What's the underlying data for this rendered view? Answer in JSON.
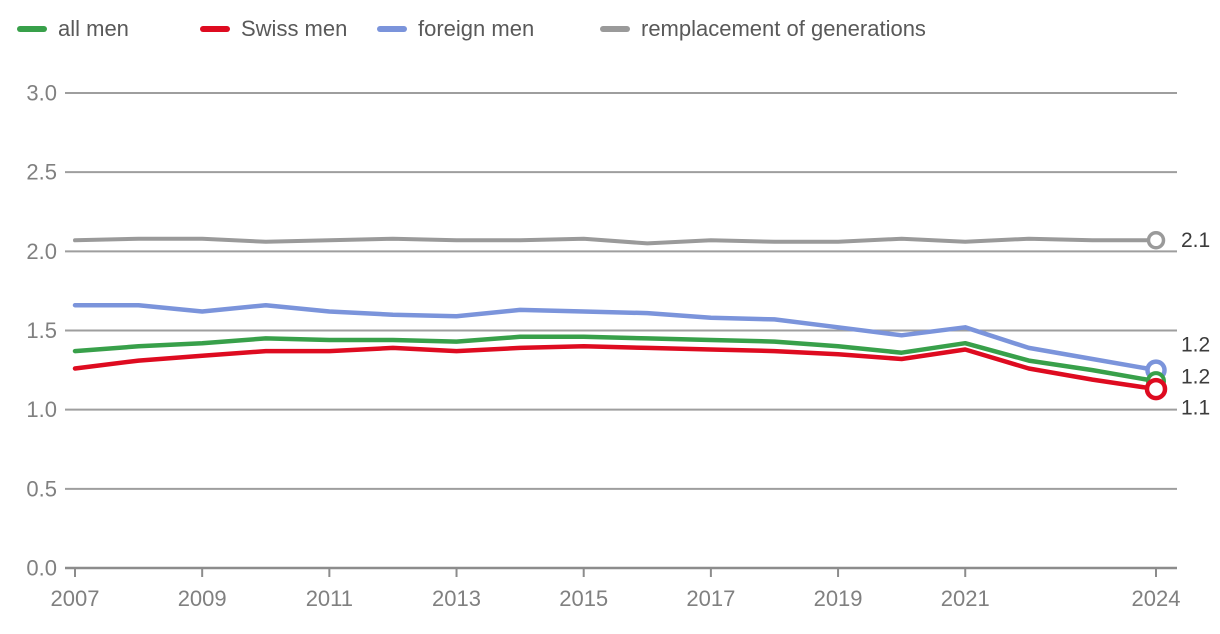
{
  "chart_data": {
    "type": "line",
    "title": "",
    "xlabel": "",
    "ylabel": "",
    "x": [
      2007,
      2008,
      2009,
      2010,
      2011,
      2012,
      2013,
      2014,
      2015,
      2016,
      2017,
      2018,
      2019,
      2020,
      2021,
      2022,
      2023,
      2024
    ],
    "x_tick_labels": [
      "2007",
      "2009",
      "2011",
      "2013",
      "2015",
      "2017",
      "2019",
      "2021",
      "2024"
    ],
    "y_ticks": [
      0.0,
      0.5,
      1.0,
      1.5,
      2.0,
      2.5,
      3.0
    ],
    "y_tick_labels": [
      "0.0",
      "0.5",
      "1.0",
      "1.5",
      "2.0",
      "2.5",
      "3.0"
    ],
    "ylim": [
      0.0,
      3.0
    ],
    "grid": "horizontal",
    "legend_position": "top-left",
    "series": [
      {
        "name": "all men",
        "color": "#38a04a",
        "end_label": "1.2",
        "values": [
          1.37,
          1.4,
          1.42,
          1.45,
          1.44,
          1.44,
          1.43,
          1.46,
          1.46,
          1.45,
          1.44,
          1.43,
          1.4,
          1.36,
          1.42,
          1.31,
          1.25,
          1.18
        ]
      },
      {
        "name": "Swiss men",
        "color": "#de0b20",
        "end_label": "1.1",
        "values": [
          1.26,
          1.31,
          1.34,
          1.37,
          1.37,
          1.39,
          1.37,
          1.39,
          1.4,
          1.39,
          1.38,
          1.37,
          1.35,
          1.32,
          1.38,
          1.26,
          1.19,
          1.13
        ]
      },
      {
        "name": "foreign men",
        "color": "#7b94db",
        "end_label": "1.2",
        "values": [
          1.66,
          1.66,
          1.62,
          1.66,
          1.62,
          1.6,
          1.59,
          1.63,
          1.62,
          1.61,
          1.58,
          1.57,
          1.52,
          1.47,
          1.52,
          1.39,
          1.32,
          1.25
        ]
      },
      {
        "name": "remplacement of generations",
        "color": "#9a9a9a",
        "end_label": "2.1",
        "values": [
          2.07,
          2.08,
          2.08,
          2.06,
          2.07,
          2.08,
          2.07,
          2.07,
          2.08,
          2.05,
          2.07,
          2.06,
          2.06,
          2.08,
          2.06,
          2.08,
          2.07,
          2.07
        ]
      }
    ]
  },
  "colors": {
    "gridline": "#9e9e9e",
    "axis": "#8c8c8c",
    "tick_label": "#808080",
    "end_label": "#3c3c3c",
    "legend_text": "#595959",
    "marker_fill": "#ffffff"
  }
}
